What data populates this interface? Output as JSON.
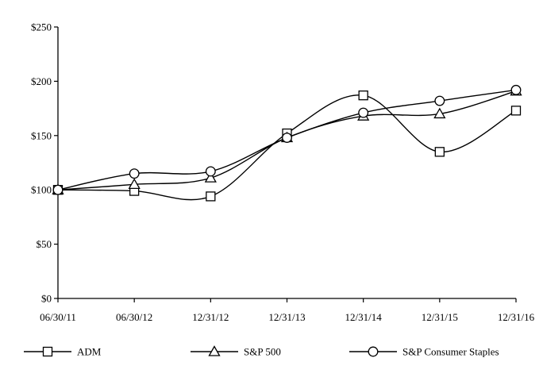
{
  "chart_data": {
    "type": "line",
    "title": "",
    "xlabel": "",
    "ylabel": "",
    "categories": [
      "06/30/11",
      "06/30/12",
      "12/31/12",
      "12/31/13",
      "12/31/14",
      "12/31/15",
      "12/31/16"
    ],
    "y_ticks": [
      "$0",
      "$50",
      "$100",
      "$150",
      "$200",
      "$250"
    ],
    "ylim": [
      0,
      250
    ],
    "grid": false,
    "legend_position": "bottom",
    "series": [
      {
        "name": "ADM",
        "marker": "square",
        "values": [
          100,
          99,
          94,
          152,
          187,
          135,
          173
        ]
      },
      {
        "name": "S&P 500",
        "marker": "triangle",
        "values": [
          100,
          105,
          111,
          148,
          168,
          170,
          191
        ]
      },
      {
        "name": "S&P Consumer Staples",
        "marker": "circle",
        "values": [
          100,
          115,
          117,
          148,
          171,
          182,
          192
        ]
      }
    ],
    "line_color": "#000000"
  }
}
